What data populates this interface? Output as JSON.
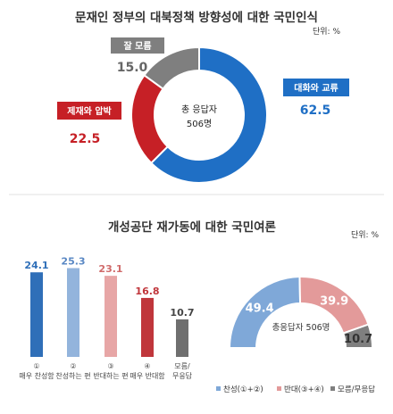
{
  "unit_label": "단위: %",
  "colors": {
    "blue": "#1f6fc5",
    "red": "#c62026",
    "gray": "#7f7f7f",
    "light_blue": "#7fa8d8",
    "pink": "#e39a9a",
    "bar_blue": "#2f6fb8",
    "bar_light_blue": "#93b4dc",
    "bar_pink": "#e7a6a6",
    "bar_red": "#c0363b",
    "bar_gray": "#6f6f6f"
  },
  "chart_data": [
    {
      "type": "pie",
      "variant": "donut",
      "title": "문재인 정부의 대북정책 방향성에 대한 국민인식",
      "center_label": [
        "총 응답자",
        "506명"
      ],
      "slices": [
        {
          "label": "대화와 교류",
          "value": 62.5,
          "value_text": "62.5",
          "color": "#1f6fc5"
        },
        {
          "label": "제재와 압박",
          "value": 22.5,
          "value_text": "22.5",
          "color": "#c62026"
        },
        {
          "label": "잘 모름",
          "value": 15.0,
          "value_text": "15.0",
          "color": "#7f7f7f"
        }
      ]
    },
    {
      "type": "bar",
      "title": "개성공단 재가동에 대한 국민여론",
      "ylim": [
        0,
        30
      ],
      "categories": [
        {
          "num": "①",
          "label": "매우 찬성함"
        },
        {
          "num": "②",
          "label": "찬성하는 편"
        },
        {
          "num": "③",
          "label": "반대하는 편"
        },
        {
          "num": "④",
          "label": "매우 반대함"
        },
        {
          "num": "",
          "label": "모름/무응답"
        }
      ],
      "values": [
        24.1,
        25.3,
        23.1,
        16.8,
        10.7
      ],
      "value_texts": [
        "24.1",
        "25.3",
        "23.1",
        "16.8",
        "10.7"
      ],
      "colors": [
        "#2f6fb8",
        "#93b4dc",
        "#e7a6a6",
        "#c0363b",
        "#6f6f6f"
      ]
    },
    {
      "type": "pie",
      "variant": "half-donut",
      "center_label": "총응답자 506명",
      "slices": [
        {
          "label": "찬성(①+②)",
          "value": 49.4,
          "value_text": "49.4",
          "color": "#7fa8d8"
        },
        {
          "label": "반대(③+④)",
          "value": 39.9,
          "value_text": "39.9",
          "color": "#e39a9a"
        },
        {
          "label": "모름/무응답",
          "value": 10.7,
          "value_text": "10.7",
          "color": "#7f7f7f"
        }
      ]
    }
  ]
}
